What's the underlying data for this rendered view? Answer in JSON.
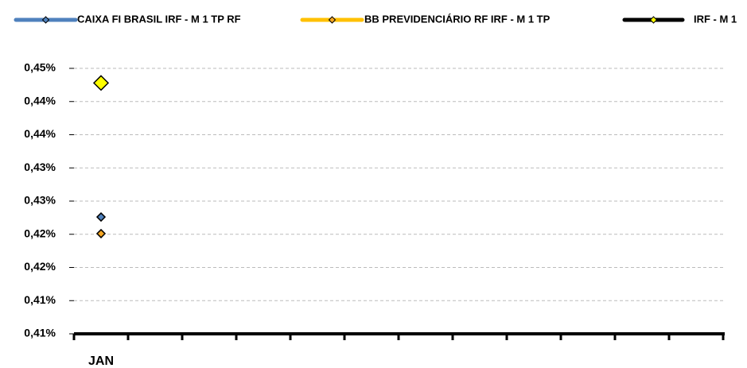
{
  "chart_data": {
    "type": "line",
    "categories": [
      "JAN",
      null,
      null,
      null,
      null,
      null,
      null,
      null,
      null,
      null,
      null,
      null
    ],
    "series": [
      {
        "name": "CAIXA FI BRASIL IRF - M 1 TP RF",
        "color": "#4f81bd",
        "marker_color": "#4f81bd",
        "values": [
          0.4276,
          null,
          null,
          null,
          null,
          null,
          null,
          null,
          null,
          null,
          null,
          null
        ]
      },
      {
        "name": "BB PREVIDENCIÁRIO RF IRF - M 1 TP",
        "color": "#ffc000",
        "marker_color": "#f5a623",
        "values": [
          0.4251,
          null,
          null,
          null,
          null,
          null,
          null,
          null,
          null,
          null,
          null,
          null
        ]
      },
      {
        "name": "IRF - M 1",
        "color": "#000000",
        "marker_color": "#ffff00",
        "values": [
          0.4478,
          null,
          null,
          null,
          null,
          null,
          null,
          null,
          null,
          null,
          null,
          null
        ]
      }
    ],
    "ylim": [
      0.41,
      0.45
    ],
    "yticks": [
      {
        "value": 0.41,
        "label": "0,41%"
      },
      {
        "value": 0.415,
        "label": "0,41%"
      },
      {
        "value": 0.42,
        "label": "0,42%"
      },
      {
        "value": 0.425,
        "label": "0,42%"
      },
      {
        "value": 0.43,
        "label": "0,43%"
      },
      {
        "value": 0.435,
        "label": "0,43%"
      },
      {
        "value": 0.44,
        "label": "0,44%"
      },
      {
        "value": 0.445,
        "label": "0,44%"
      },
      {
        "value": 0.45,
        "label": "0,45%"
      }
    ],
    "grid": true,
    "legend": "top"
  }
}
